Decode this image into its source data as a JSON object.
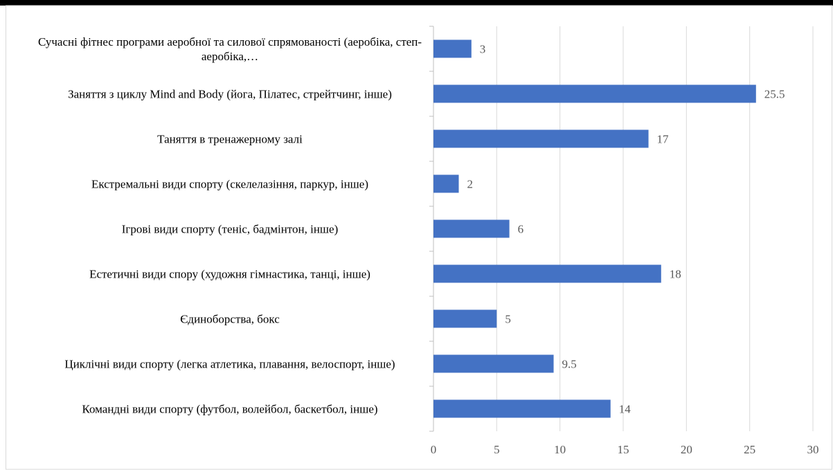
{
  "chart_data": {
    "type": "bar",
    "orientation": "horizontal",
    "categories": [
      "Сучасні фітнес програми аеробної та силової спрямованості (аеробіка, степ-аеробіка,…",
      "Заняття з циклу Mind and Body (йога, Пілатес, стрейтчинг, інше)",
      "Таняття в тренажерному залі",
      "Екстремальні види спорту (скелелазіння, паркур, інше)",
      "Ігрові види спорту (теніс, бадмінтон, інше)",
      "Естетичні види спору (художня гімнастика, танці, інше)",
      "Єдиноборства, бокс",
      "Циклічні види спорту (легка атлетика, плавання, велоспорт, інше)",
      "Командні види спорту (футбол, волейбол, баскетбол, інше)"
    ],
    "values": [
      3,
      25.5,
      17,
      2,
      6,
      18,
      5,
      9.5,
      14
    ],
    "color": "#4472c4",
    "xlim": [
      0,
      30
    ],
    "xticks": [
      0,
      5,
      10,
      15,
      20,
      25,
      30
    ],
    "grid": true
  }
}
